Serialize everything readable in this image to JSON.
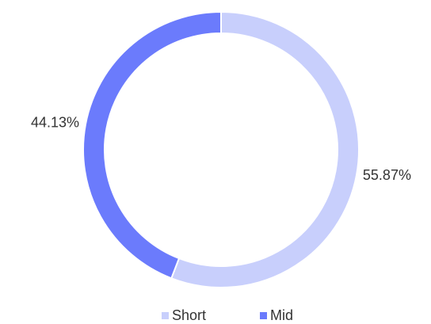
{
  "chart_data": {
    "type": "pie",
    "categories": [
      "Short",
      "Mid"
    ],
    "values": [
      55.87,
      44.13
    ],
    "value_labels": [
      "55.87%",
      "44.13%"
    ],
    "colors": [
      "#c8cffc",
      "#6b7bfc"
    ],
    "donut": true,
    "legend": "bottom"
  }
}
